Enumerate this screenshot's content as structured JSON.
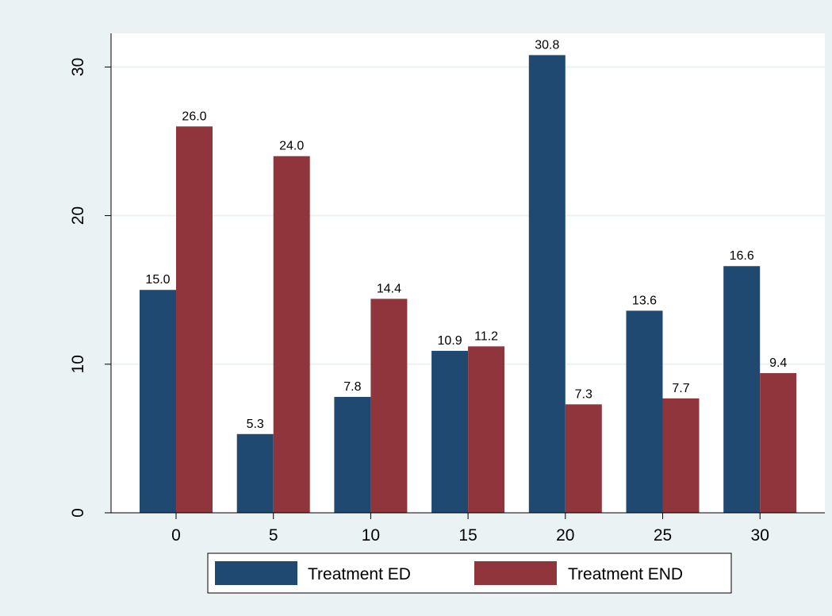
{
  "chart_data": {
    "type": "bar",
    "title": "",
    "xlabel": "",
    "ylabel": "",
    "categories": [
      "0",
      "5",
      "10",
      "15",
      "20",
      "25",
      "30"
    ],
    "series": [
      {
        "name": "Treatment ED",
        "color": "#1f4970",
        "values": [
          15.0,
          5.3,
          7.8,
          10.9,
          30.8,
          13.6,
          16.6
        ],
        "labels": [
          "15.0",
          "5.3",
          "7.8",
          "10.9",
          "30.8",
          "13.6",
          "16.6"
        ]
      },
      {
        "name": "Treatment END",
        "color": "#90353b",
        "values": [
          26.0,
          24.0,
          14.4,
          11.2,
          7.3,
          7.7,
          9.4
        ],
        "labels": [
          "26.0",
          "24.0",
          "14.4",
          "11.2",
          "7.3",
          "7.7",
          "9.4"
        ]
      }
    ],
    "ylim": [
      0,
      30.8
    ],
    "yticks": [
      0,
      10,
      20,
      30
    ],
    "ytick_labels": [
      "0",
      "10",
      "20",
      "30"
    ],
    "grid": true,
    "legend_position": "bottom",
    "colors": {
      "outer_background": "#eaf2f3",
      "plot_background": "#ffffff",
      "grid": "#eaf2f3"
    }
  }
}
